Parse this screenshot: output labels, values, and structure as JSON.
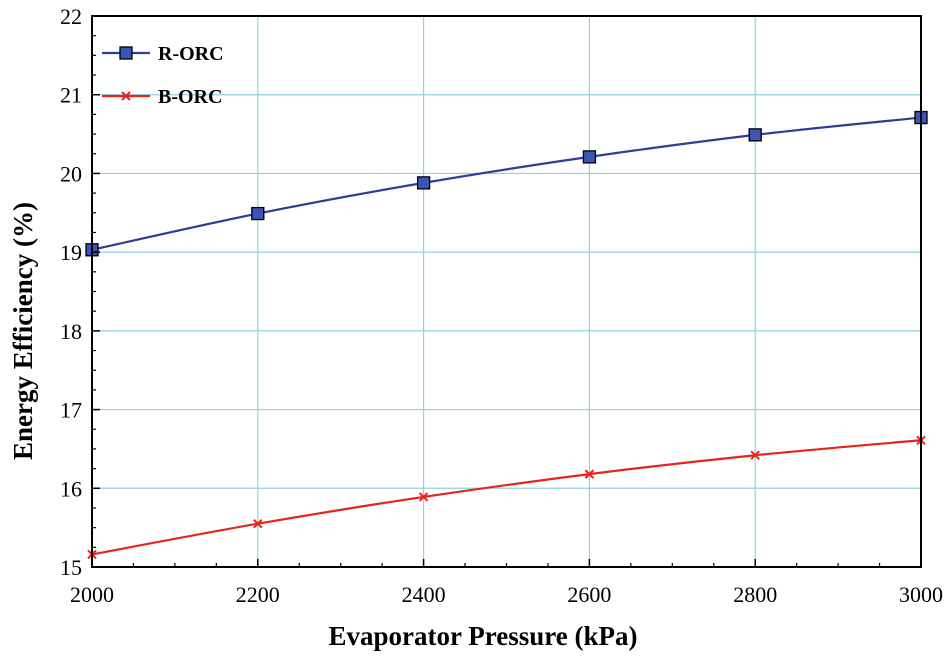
{
  "chart_data": {
    "type": "line",
    "title": "",
    "xlabel": "Evaporator Pressure (kPa)",
    "ylabel": "Energy Efficiency (%)",
    "xlim": [
      2000,
      3000
    ],
    "ylim": [
      15,
      22
    ],
    "grid": true,
    "legend_position": "top-left",
    "x_ticks": [
      "2000",
      "2200",
      "2400",
      "2600",
      "2800",
      "3000"
    ],
    "y_ticks": [
      "15",
      "16",
      "17",
      "18",
      "19",
      "20",
      "21",
      "22"
    ],
    "x": [
      2000,
      2200,
      2400,
      2600,
      2800,
      3000
    ],
    "series": [
      {
        "name": "R-ORC",
        "values": [
          19.03,
          19.49,
          19.88,
          20.21,
          20.49,
          20.71
        ],
        "color": "#2b3f97",
        "marker": "square",
        "marker_fill": "#3a55b4"
      },
      {
        "name": "B-ORC",
        "values": [
          15.16,
          15.55,
          15.89,
          16.18,
          16.42,
          16.61
        ],
        "color": "#e8231c",
        "marker": "x"
      }
    ]
  },
  "colors": {
    "grid": "#8fd3e0",
    "axis": "#000000"
  }
}
